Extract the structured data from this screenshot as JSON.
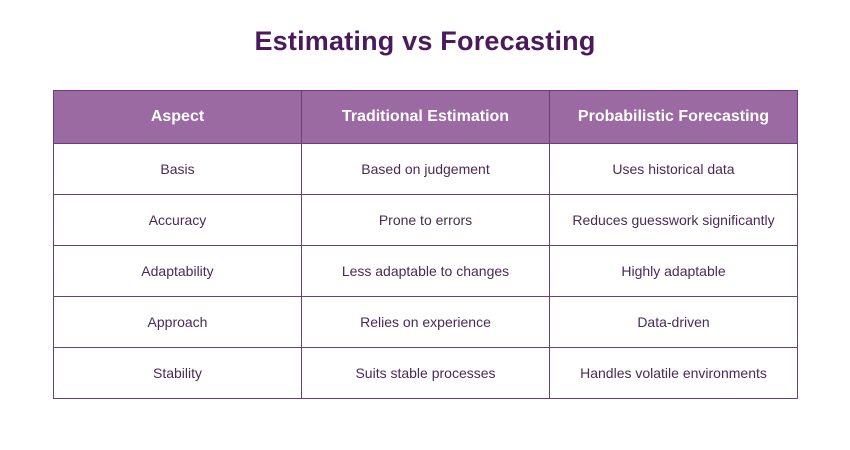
{
  "title": "Estimating vs Forecasting",
  "table": {
    "headers": [
      "Aspect",
      "Traditional Estimation",
      "Probabilistic Forecasting"
    ],
    "rows": [
      [
        "Basis",
        "Based on judgement",
        "Uses historical data"
      ],
      [
        "Accuracy",
        "Prone to errors",
        "Reduces guesswork significantly"
      ],
      [
        "Adaptability",
        "Less adaptable to changes",
        "Highly adaptable"
      ],
      [
        "Approach",
        "Relies on experience",
        "Data-driven"
      ],
      [
        "Stability",
        "Suits stable processes",
        "Handles volatile environments"
      ]
    ]
  },
  "colors": {
    "title": "#4a1a5c",
    "header_bg": "#9b6aa3",
    "border": "#6e3d7c",
    "cell_text": "#4a2a55"
  }
}
